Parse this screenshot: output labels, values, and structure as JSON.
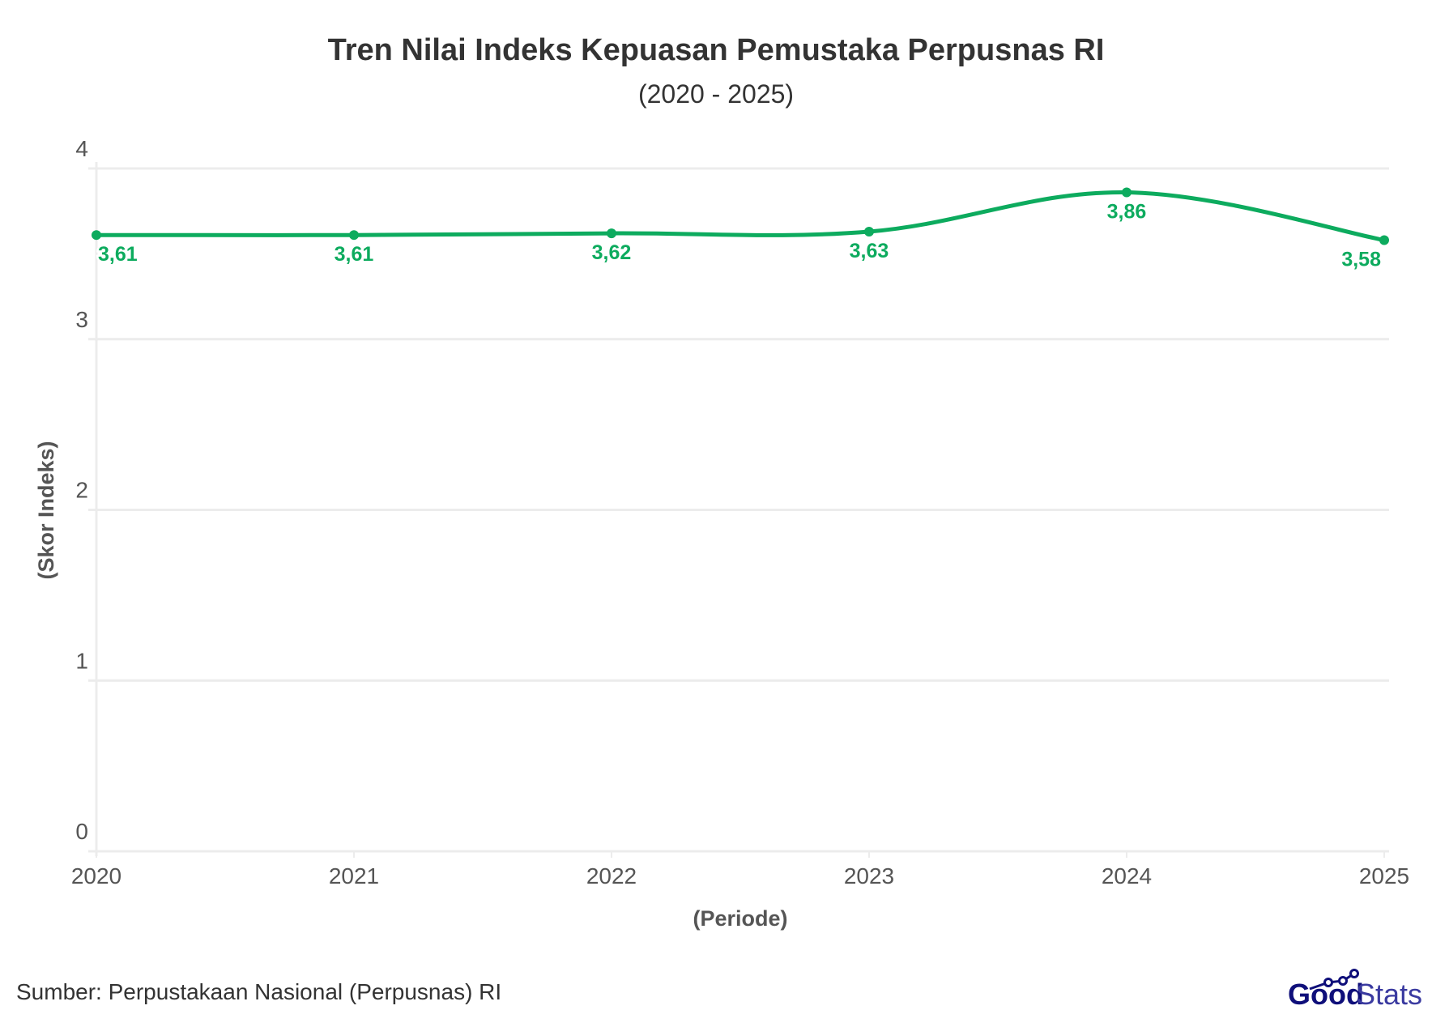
{
  "chart_data": {
    "type": "line",
    "title": "Tren Nilai Indeks Kepuasan Pemustaka Perpusnas RI",
    "subtitle": "(2020 - 2025)",
    "xlabel": "(Periode)",
    "ylabel": "(Skor Indeks)",
    "categories": [
      "2020",
      "2021",
      "2022",
      "2023",
      "2024",
      "2025"
    ],
    "values": [
      3.61,
      3.61,
      3.62,
      3.63,
      3.86,
      3.58
    ],
    "data_labels": [
      "3,61",
      "3,61",
      "3,62",
      "3,63",
      "3,86",
      "3,58"
    ],
    "yticks": [
      "0",
      "1",
      "2",
      "3",
      "4"
    ],
    "ylim": [
      0,
      4
    ],
    "grid": true,
    "smooth": true,
    "color": "#0dab5e"
  },
  "source": "Sumber: Perpustakaan Nasional (Perpusnas) RI",
  "logo": {
    "text_bold": "Good",
    "text_light": "Stats",
    "color": "#0f0f7a"
  }
}
